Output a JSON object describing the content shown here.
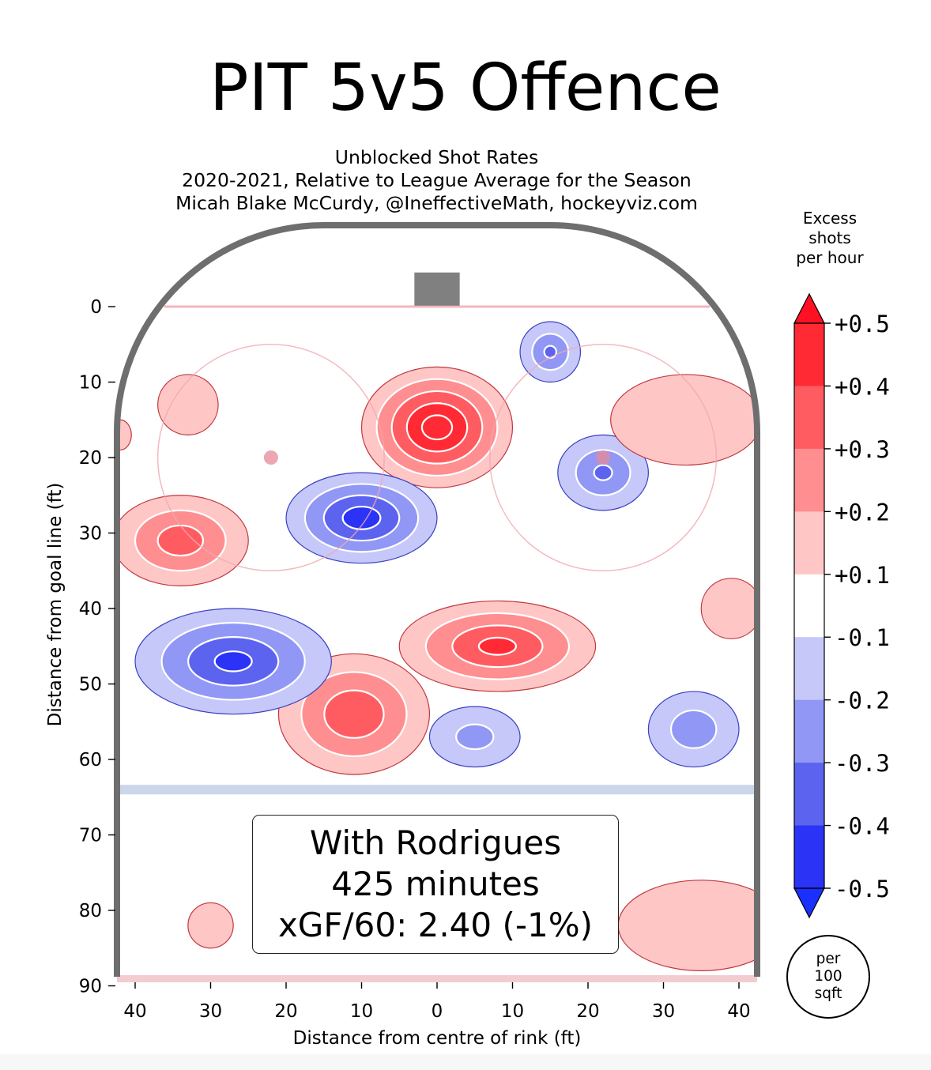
{
  "title": "PIT 5v5 Offence",
  "subtitles": [
    "Unblocked Shot Rates",
    "2020-2021, Relative to League Average for the Season",
    "Micah Blake McCurdy, @IneffectiveMath, hockeyviz.com"
  ],
  "annotation": {
    "lines": [
      "With Rodrigues",
      "425 minutes",
      "xGF/60: 2.40 (-1%)"
    ]
  },
  "per_area": [
    "per",
    "100",
    "sqft"
  ],
  "colorbar": {
    "title": [
      "Excess",
      "shots",
      "per hour"
    ],
    "ticks": [
      "+0.5",
      "+0.4",
      "+0.3",
      "+0.2",
      "+0.1",
      "-0.1",
      "-0.2",
      "-0.3",
      "-0.4",
      "-0.5"
    ],
    "bands": [
      {
        "range": [
          0.4,
          0.5
        ],
        "color": "#ff2a33"
      },
      {
        "range": [
          0.3,
          0.4
        ],
        "color": "#ff5c62"
      },
      {
        "range": [
          0.2,
          0.3
        ],
        "color": "#ff8e90"
      },
      {
        "range": [
          0.1,
          0.2
        ],
        "color": "#ffc6c6"
      },
      {
        "range": [
          -0.1,
          0.1
        ],
        "color": "#ffffff"
      },
      {
        "range": [
          -0.2,
          -0.1
        ],
        "color": "#c5c8f9"
      },
      {
        "range": [
          -0.3,
          -0.2
        ],
        "color": "#9197f5"
      },
      {
        "range": [
          -0.4,
          -0.3
        ],
        "color": "#5c63ee"
      },
      {
        "range": [
          -0.5,
          -0.4
        ],
        "color": "#2a33f6"
      }
    ],
    "extend_over": "#ff1022",
    "extend_under": "#1930ff"
  },
  "chart_data": {
    "type": "heatmap",
    "xlabel": "Distance from centre of rink (ft)",
    "ylabel": "Distance from goal line (ft)",
    "xlim": [
      -42.5,
      42.5
    ],
    "ylim": [
      -11,
      90
    ],
    "xticks": [
      -40,
      -30,
      -20,
      -10,
      0,
      10,
      20,
      30,
      40
    ],
    "xtick_labels": [
      "40",
      "30",
      "20",
      "10",
      "0",
      "10",
      "20",
      "30",
      "40"
    ],
    "yticks": [
      0,
      10,
      20,
      30,
      40,
      50,
      60,
      70,
      80,
      90
    ],
    "ytick_labels": [
      "0",
      "10",
      "20",
      "30",
      "40",
      "50",
      "60",
      "70",
      "80",
      "90"
    ],
    "rink": {
      "goal_line_y": 0,
      "blue_line_y": 64,
      "faceoff_dots": [
        [
          -22,
          20
        ],
        [
          22,
          20
        ]
      ],
      "faceoff_circle_radius": 15,
      "net": {
        "x": [
          -3,
          3
        ],
        "y": [
          -4,
          0
        ]
      }
    },
    "blobs": [
      {
        "x": 0,
        "y": 16,
        "rx": 10,
        "ry": 8,
        "value": 0.55
      },
      {
        "x": 8,
        "y": 45,
        "rx": 13,
        "ry": 6,
        "value": 0.42
      },
      {
        "x": -11,
        "y": 54,
        "rx": 10,
        "ry": 8,
        "value": 0.38
      },
      {
        "x": -34,
        "y": 31,
        "rx": 9,
        "ry": 6,
        "value": 0.35
      },
      {
        "x": -10,
        "y": 28,
        "rx": 10,
        "ry": 6,
        "value": -0.45
      },
      {
        "x": -27,
        "y": 47,
        "rx": 13,
        "ry": 7,
        "value": -0.42
      },
      {
        "x": 22,
        "y": 22,
        "rx": 6,
        "ry": 5,
        "value": -0.3
      },
      {
        "x": 15,
        "y": 6,
        "rx": 4,
        "ry": 4,
        "value": -0.3
      },
      {
        "x": 34,
        "y": 56,
        "rx": 6,
        "ry": 5,
        "value": -0.25
      },
      {
        "x": 5,
        "y": 57,
        "rx": 6,
        "ry": 4,
        "value": -0.22
      },
      {
        "x": 33,
        "y": 15,
        "rx": 10,
        "ry": 6,
        "value": 0.15
      },
      {
        "x": 35,
        "y": 82,
        "rx": 11,
        "ry": 6,
        "value": 0.15
      },
      {
        "x": -30,
        "y": 82,
        "rx": 3,
        "ry": 3,
        "value": 0.15
      },
      {
        "x": 39,
        "y": 40,
        "rx": 4,
        "ry": 4,
        "value": 0.15
      },
      {
        "x": -33,
        "y": 13,
        "rx": 4,
        "ry": 4,
        "value": 0.15
      },
      {
        "x": -42,
        "y": 17,
        "rx": 1.5,
        "ry": 2,
        "value": 0.15
      }
    ]
  }
}
